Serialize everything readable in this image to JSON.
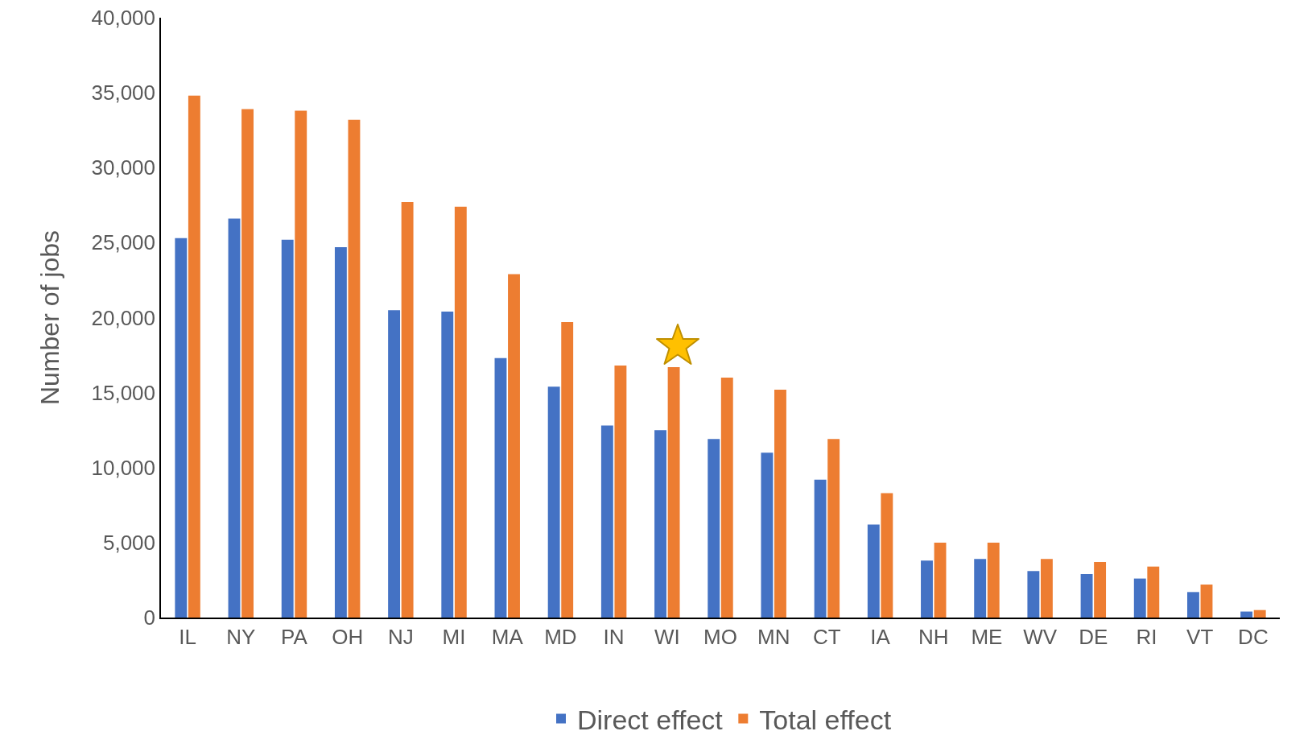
{
  "chart_data": {
    "type": "bar",
    "ylabel": "Number of jobs",
    "categories": [
      "IL",
      "NY",
      "PA",
      "OH",
      "NJ",
      "MI",
      "MA",
      "MD",
      "IN",
      "WI",
      "MO",
      "MN",
      "CT",
      "IA",
      "NH",
      "ME",
      "WV",
      "DE",
      "RI",
      "VT",
      "DC"
    ],
    "series": [
      {
        "name": "Direct effect",
        "color": "#4472c4",
        "values": [
          25300,
          26600,
          25200,
          24700,
          20500,
          20400,
          17300,
          15400,
          12800,
          12500,
          11900,
          11000,
          9200,
          6200,
          3800,
          3900,
          3100,
          2900,
          2600,
          1700,
          400
        ]
      },
      {
        "name": "Total effect",
        "color": "#ed7d31",
        "values": [
          34800,
          33900,
          33800,
          33200,
          27700,
          27400,
          22900,
          19700,
          16800,
          16700,
          16000,
          15200,
          11900,
          8300,
          5000,
          5000,
          3900,
          3700,
          3400,
          2200,
          500
        ]
      }
    ],
    "ylim": [
      0,
      40000
    ],
    "yticks": [
      {
        "value": 0,
        "label": "0"
      },
      {
        "value": 5000,
        "label": "5,000"
      },
      {
        "value": 10000,
        "label": "10,000"
      },
      {
        "value": 15000,
        "label": "15,000"
      },
      {
        "value": 20000,
        "label": "20,000"
      },
      {
        "value": 25000,
        "label": "25,000"
      },
      {
        "value": 30000,
        "label": "30,000"
      },
      {
        "value": 35000,
        "label": "35,000"
      },
      {
        "value": 40000,
        "label": "40,000"
      }
    ],
    "grid": false,
    "legend": "bottom"
  }
}
